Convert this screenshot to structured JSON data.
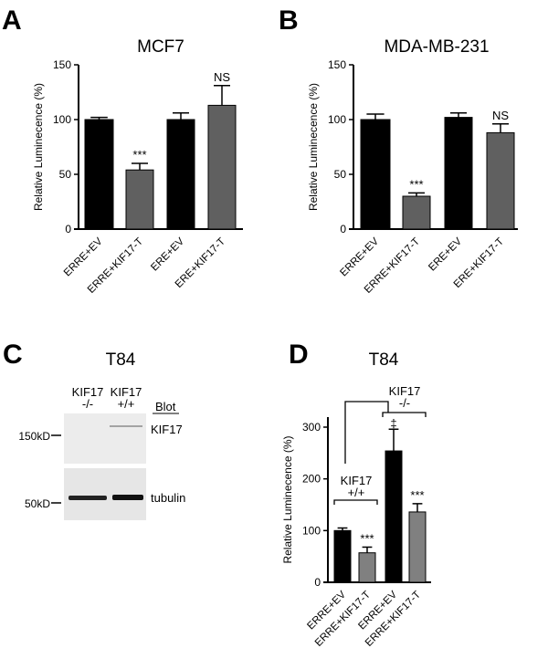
{
  "chart_data": [
    {
      "panel": "A",
      "type": "bar",
      "title": "MCF7",
      "ylabel": "Relative Luminecence (%)",
      "ylim": [
        0,
        150
      ],
      "yticks": [
        0,
        50,
        100,
        150
      ],
      "categories": [
        "ERRE+EV",
        "ERRE+KIF17-T",
        "ERE+EV",
        "ERE+KIF17-T"
      ],
      "values": [
        100,
        54,
        100,
        113
      ],
      "errors": [
        2,
        6,
        6,
        18
      ],
      "colors": [
        "#000000",
        "#606060",
        "#000000",
        "#606060"
      ],
      "annotations": [
        "",
        "***",
        "",
        "NS"
      ]
    },
    {
      "panel": "B",
      "type": "bar",
      "title": "MDA-MB-231",
      "ylabel": "Relative Luminecence (%)",
      "ylim": [
        0,
        150
      ],
      "yticks": [
        0,
        50,
        100,
        150
      ],
      "categories": [
        "ERRE+EV",
        "ERRE+KIF17-T",
        "ERE+EV",
        "ERE+KIF17-T"
      ],
      "values": [
        100,
        30,
        102,
        88
      ],
      "errors": [
        5,
        3,
        4,
        8
      ],
      "colors": [
        "#000000",
        "#606060",
        "#000000",
        "#606060"
      ],
      "annotations": [
        "",
        "***",
        "",
        "NS"
      ]
    },
    {
      "panel": "D",
      "type": "bar",
      "title": "T84",
      "ylabel": "Relative Luminecence (%)",
      "ylim": [
        0,
        320
      ],
      "yticks": [
        0,
        100,
        200,
        300
      ],
      "categories": [
        "ERRE+EV",
        "ERRE+KIF17-T",
        "ERRE+EV",
        "ERRE+KIF17-T"
      ],
      "values": [
        100,
        57,
        254,
        136
      ],
      "errors": [
        5,
        11,
        42,
        16
      ],
      "colors": [
        "#000000",
        "#808080",
        "#000000",
        "#808080"
      ],
      "annotations": [
        "",
        "***",
        "‡",
        "***"
      ],
      "groups": [
        {
          "label": "KIF17",
          "genotype": "+/+"
        },
        {
          "label": "KIF17",
          "genotype": "-/-"
        }
      ]
    }
  ],
  "blot": {
    "panel": "C",
    "title": "T84",
    "lanes": [
      {
        "name": "KIF17",
        "genotype": "-/-"
      },
      {
        "name": "KIF17",
        "genotype": "+/+"
      }
    ],
    "blot_header": "Blot",
    "bands": [
      "KIF17",
      "tubulin"
    ],
    "markers": [
      "150kD",
      "50kD"
    ]
  }
}
